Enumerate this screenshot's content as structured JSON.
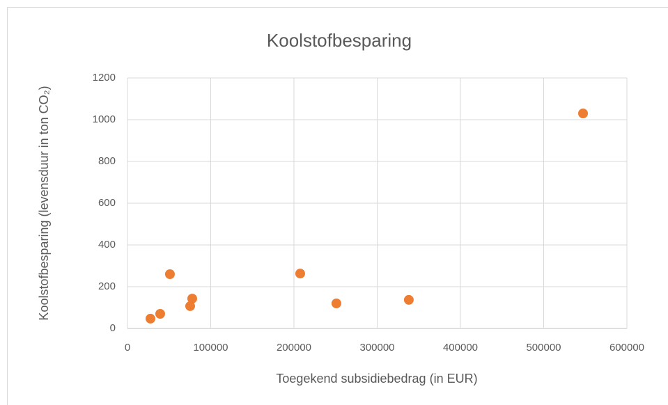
{
  "chart_data": {
    "type": "scatter",
    "title": "Koolstofbesparing",
    "x_label": "Toegekend subsidiebedrag (in EUR)",
    "y_label": "Koolstofbesparing (levensduur in ton CO₂)",
    "x": [
      27600,
      39300,
      51000,
      75300,
      77800,
      207500,
      251000,
      338000,
      547300
    ],
    "values": [
      47,
      70,
      260,
      107,
      143,
      263,
      120,
      137,
      1030
    ],
    "color": "#ed7d31",
    "xlim": [
      0,
      600000
    ],
    "xticks": [
      0,
      100000,
      200000,
      300000,
      400000,
      500000,
      600000
    ],
    "ylim": [
      0,
      1200
    ],
    "yticks": [
      0,
      200,
      400,
      600,
      800,
      1000,
      1200
    ],
    "grid": true
  }
}
